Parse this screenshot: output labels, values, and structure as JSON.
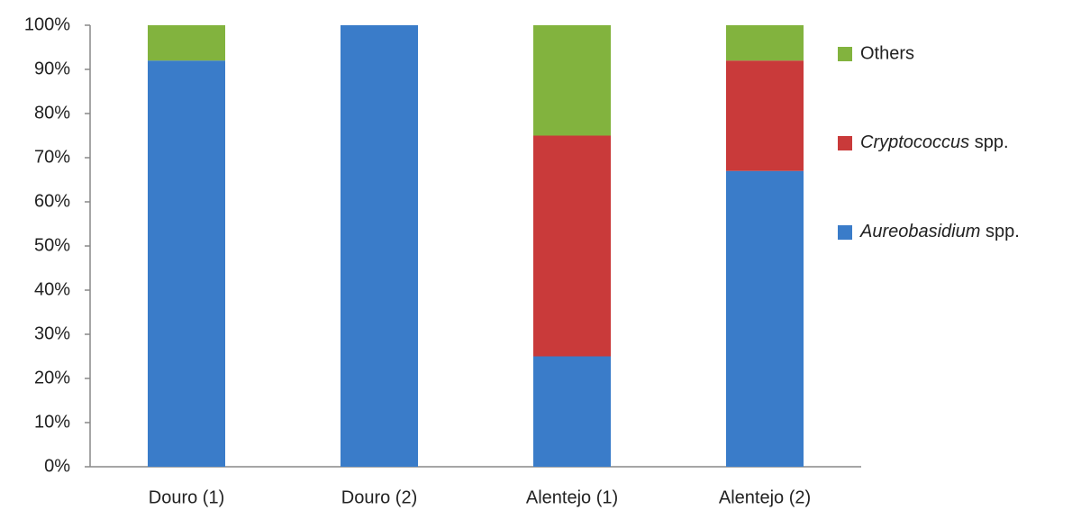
{
  "chart_data": {
    "type": "stacked_bar",
    "categories": [
      "Douro (1)",
      "Douro (2)",
      "Alentejo (1)",
      "Alentejo (2)"
    ],
    "series": [
      {
        "name": "Aureobasidium spp.",
        "color": "#3a7cc9",
        "values": [
          92,
          100,
          25,
          67
        ]
      },
      {
        "name": "Cryptococcus spp.",
        "color": "#c93a3a",
        "values": [
          0,
          0,
          50,
          25
        ]
      },
      {
        "name": "Others",
        "color": "#82b33e",
        "values": [
          8,
          0,
          25,
          8
        ]
      }
    ],
    "ylim": [
      0,
      100
    ],
    "yticks": [
      {
        "value": 0,
        "label": "0%"
      },
      {
        "value": 10,
        "label": "10%"
      },
      {
        "value": 20,
        "label": "20%"
      },
      {
        "value": 30,
        "label": "30%"
      },
      {
        "value": 40,
        "label": "40%"
      },
      {
        "value": 50,
        "label": "50%"
      },
      {
        "value": 60,
        "label": "60%"
      },
      {
        "value": 70,
        "label": "70%"
      },
      {
        "value": 80,
        "label": "80%"
      },
      {
        "value": 90,
        "label": "90%"
      },
      {
        "value": 100,
        "label": "100%"
      }
    ],
    "grid": false,
    "legend": "right"
  }
}
